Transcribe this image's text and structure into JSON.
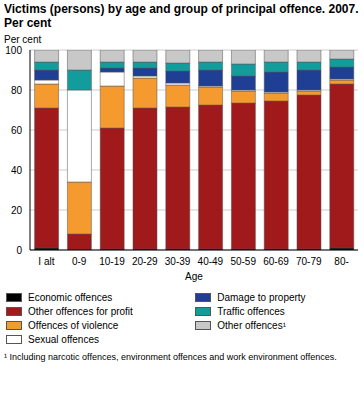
{
  "chart_data": {
    "type": "bar",
    "title": "Victims (persons) by age and group of principal offence. 2007. Per cent",
    "y_label": "Per cent",
    "x_label": "Age",
    "footnote": "¹ Including narcotic offences, environment offences and work environment offences.",
    "categories": [
      "I alt",
      "0-9",
      "10-19",
      "20-29",
      "30-39",
      "40-49",
      "50-59",
      "60-69",
      "70-79",
      "80-"
    ],
    "stacked": true,
    "grid": true,
    "ylim": [
      0,
      100
    ],
    "yticks": [
      0,
      20,
      40,
      60,
      80,
      100
    ],
    "series": [
      {
        "name": "Economic offences",
        "color": "#000000",
        "values": [
          1,
          0,
          0.5,
          0.5,
          0.5,
          0.5,
          0.5,
          0.5,
          0.5,
          1
        ]
      },
      {
        "name": "Other offences for profit",
        "color": "#a0191b",
        "values": [
          70,
          8,
          60.5,
          70.5,
          71,
          72,
          73,
          74,
          77,
          82
        ]
      },
      {
        "name": "Offences of violence",
        "color": "#f59a2e",
        "values": [
          12,
          26,
          21,
          15,
          11,
          9,
          6,
          4,
          2,
          2
        ]
      },
      {
        "name": "Sexual offences",
        "color": "#ffffff",
        "values": [
          2,
          46,
          7,
          1,
          1,
          0.5,
          0.5,
          0.5,
          0.5,
          0.5
        ]
      },
      {
        "name": "Damage to property",
        "color": "#1e3f94",
        "values": [
          5,
          0,
          2,
          4,
          6,
          8,
          7,
          10,
          10,
          6
        ]
      },
      {
        "name": "Traffic offences",
        "color": "#139c9c",
        "values": [
          4,
          10,
          3,
          3,
          4,
          4,
          6,
          5,
          4,
          4
        ]
      },
      {
        "name": "Other offences¹",
        "color": "#c8c8c8",
        "values": [
          6,
          10,
          6,
          6,
          6.5,
          6,
          7,
          6,
          6,
          4.5
        ]
      }
    ]
  }
}
